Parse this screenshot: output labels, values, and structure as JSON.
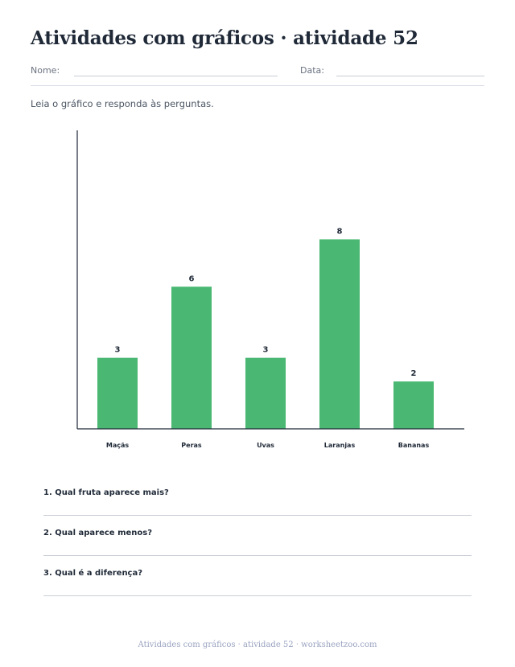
{
  "header": {
    "title": "Atividades com gráficos · atividade 52",
    "name_label": "Nome:",
    "date_label": "Data:"
  },
  "instructions": "Leia o gráfico e responda às perguntas.",
  "chart_data": {
    "type": "bar",
    "categories": [
      "Maçãs",
      "Peras",
      "Uvas",
      "Laranjas",
      "Bananas"
    ],
    "values": [
      3,
      6,
      3,
      8,
      2
    ],
    "ylim": [
      0,
      12.6
    ],
    "grid": false,
    "bar_color": "#4ab872",
    "axis_color": "#1f2937"
  },
  "questions": [
    "1. Qual fruta aparece mais?",
    "2. Qual aparece menos?",
    "3. Qual é a diferença?"
  ],
  "footer": "Atividades com gráficos · atividade 52 · worksheetzoo.com"
}
